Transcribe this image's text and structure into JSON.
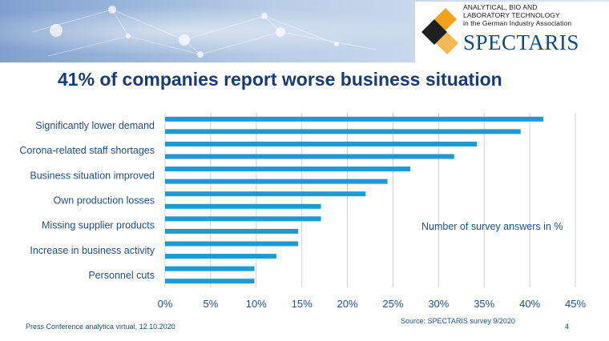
{
  "slide": {
    "title": "41% of companies report worse business situation"
  },
  "logo": {
    "line1": "ANALYTICAL, BIO AND",
    "line2": "LABORATORY TECHNOLOGY",
    "line3": "in the German Industry Association",
    "wordmark": "SPECTARIS"
  },
  "chart_data": {
    "type": "bar",
    "orientation": "horizontal",
    "category_labels_shown": [
      "Significantly lower demand",
      "Corona-related staff shortages",
      "Business situation improved",
      "Own production losses",
      "Missing supplier products",
      "Increase in business activity",
      "Personnel cuts"
    ],
    "values": [
      41.5,
      39.0,
      34.2,
      31.7,
      26.9,
      24.4,
      22.0,
      17.1,
      17.1,
      14.6,
      14.6,
      12.2,
      9.8,
      9.8
    ],
    "unit": "%",
    "xlim": [
      0,
      45
    ],
    "x_ticks": [
      "0%",
      "5%",
      "10%",
      "15%",
      "20%",
      "25%",
      "30%",
      "35%",
      "40%",
      "45%"
    ],
    "grid": "vertical",
    "annotation": "Number of survey answers in %",
    "color": "#1b9ad6"
  },
  "footer": {
    "event": "Press Conference analytica virtual, 12.10.2020",
    "source": "Source: SPECTARIS survey 9/2020",
    "page": "4"
  }
}
